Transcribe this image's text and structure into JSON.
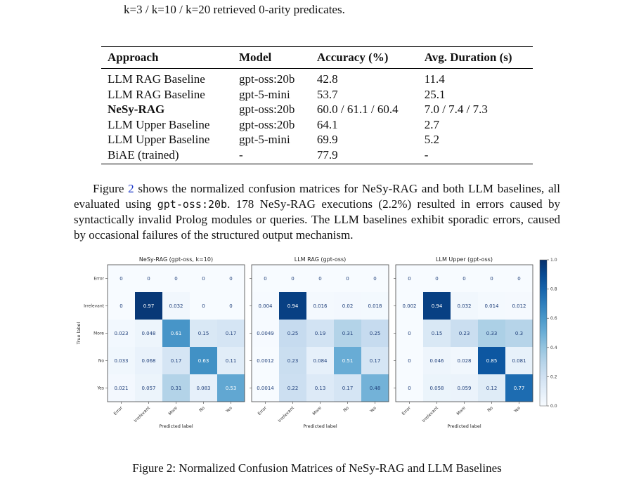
{
  "intro_line": "k=3 / k=10 / k=20 retrieved 0-arity predicates.",
  "table": {
    "headers": [
      "Approach",
      "Model",
      "Accuracy (%)",
      "Avg. Duration (s)"
    ],
    "rows": [
      {
        "approach": "LLM RAG Baseline",
        "model": "gpt-oss:20b",
        "accuracy": "42.8",
        "duration": "11.4",
        "bold": false
      },
      {
        "approach": "LLM RAG Baseline",
        "model": "gpt-5-mini",
        "accuracy": "53.7",
        "duration": "25.1",
        "bold": false
      },
      {
        "approach": "NeSy-RAG",
        "model": "gpt-oss:20b",
        "accuracy": "60.0 / 61.1 / 60.4",
        "duration": "7.0 / 7.4 / 7.3",
        "bold": true
      },
      {
        "approach": "LLM Upper Baseline",
        "model": "gpt-oss:20b",
        "accuracy": "64.1",
        "duration": "2.7",
        "bold": false
      },
      {
        "approach": "LLM Upper Baseline",
        "model": "gpt-5-mini",
        "accuracy": "69.9",
        "duration": "5.2",
        "bold": false
      },
      {
        "approach": "BiAE (trained)",
        "model": "-",
        "accuracy": "77.9",
        "duration": "-",
        "bold": false
      }
    ]
  },
  "paragraph": {
    "part1": "Figure ",
    "ref": "2",
    "part2": " shows the normalized confusion matrices for NeSy-RAG and both LLM baselines, all evaluated using ",
    "code": "gpt-oss:20b",
    "part3": ". 178 NeSy-RAG executions (2.2%) resulted in errors caused by syntactically invalid Prolog modules or queries. The LLM baselines exhibit sporadic errors, caused by occasional failures of the structured output mechanism."
  },
  "figure": {
    "caption": "Figure 2: Normalized Confusion Matrices of NeSy-RAG and LLM Baselines",
    "y_axis_label": "True label",
    "x_axis_label": "Predicted label",
    "labels": [
      "Error",
      "Irrelevant",
      "More",
      "No",
      "Yes"
    ],
    "colorbar": {
      "ticks": [
        "0.0",
        "0.2",
        "0.4",
        "0.6",
        "0.8",
        "1.0"
      ],
      "min": 0.0,
      "max": 1.0
    }
  },
  "chart_data": [
    {
      "type": "heatmap",
      "title": "NeSy-RAG (gpt-oss, k=10)",
      "xlabel": "Predicted label",
      "ylabel": "True label",
      "rows": [
        "Error",
        "Irrelevant",
        "More",
        "No",
        "Yes"
      ],
      "cols": [
        "Error",
        "Irrelevant",
        "More",
        "No",
        "Yes"
      ],
      "values": [
        [
          "0",
          "0",
          "0",
          "0",
          "0"
        ],
        [
          "0",
          "0.97",
          "0.032",
          "0",
          "0"
        ],
        [
          "0.023",
          "0.048",
          "0.61",
          "0.15",
          "0.17"
        ],
        [
          "0.033",
          "0.068",
          "0.17",
          "0.63",
          "0.11"
        ],
        [
          "0.021",
          "0.057",
          "0.31",
          "0.083",
          "0.53"
        ]
      ]
    },
    {
      "type": "heatmap",
      "title": "LLM RAG (gpt-oss)",
      "xlabel": "Predicted label",
      "ylabel": "",
      "rows": [
        "Error",
        "Irrelevant",
        "More",
        "No",
        "Yes"
      ],
      "cols": [
        "Error",
        "Irrelevant",
        "More",
        "No",
        "Yes"
      ],
      "values": [
        [
          "0",
          "0",
          "0",
          "0",
          "0"
        ],
        [
          "0.004",
          "0.94",
          "0.016",
          "0.02",
          "0.018"
        ],
        [
          "0.0049",
          "0.25",
          "0.19",
          "0.31",
          "0.25"
        ],
        [
          "0.0012",
          "0.23",
          "0.084",
          "0.51",
          "0.17"
        ],
        [
          "0.0014",
          "0.22",
          "0.13",
          "0.17",
          "0.48"
        ]
      ]
    },
    {
      "type": "heatmap",
      "title": "LLM Upper (gpt-oss)",
      "xlabel": "Predicted label",
      "ylabel": "",
      "rows": [
        "Error",
        "Irrelevant",
        "More",
        "No",
        "Yes"
      ],
      "cols": [
        "Error",
        "Irrelevant",
        "More",
        "No",
        "Yes"
      ],
      "values": [
        [
          "0",
          "0",
          "0",
          "0",
          "0"
        ],
        [
          "0.002",
          "0.94",
          "0.032",
          "0.014",
          "0.012"
        ],
        [
          "0",
          "0.15",
          "0.23",
          "0.33",
          "0.3"
        ],
        [
          "0",
          "0.046",
          "0.028",
          "0.85",
          "0.081"
        ],
        [
          "0",
          "0.058",
          "0.059",
          "0.12",
          "0.77"
        ]
      ]
    }
  ]
}
